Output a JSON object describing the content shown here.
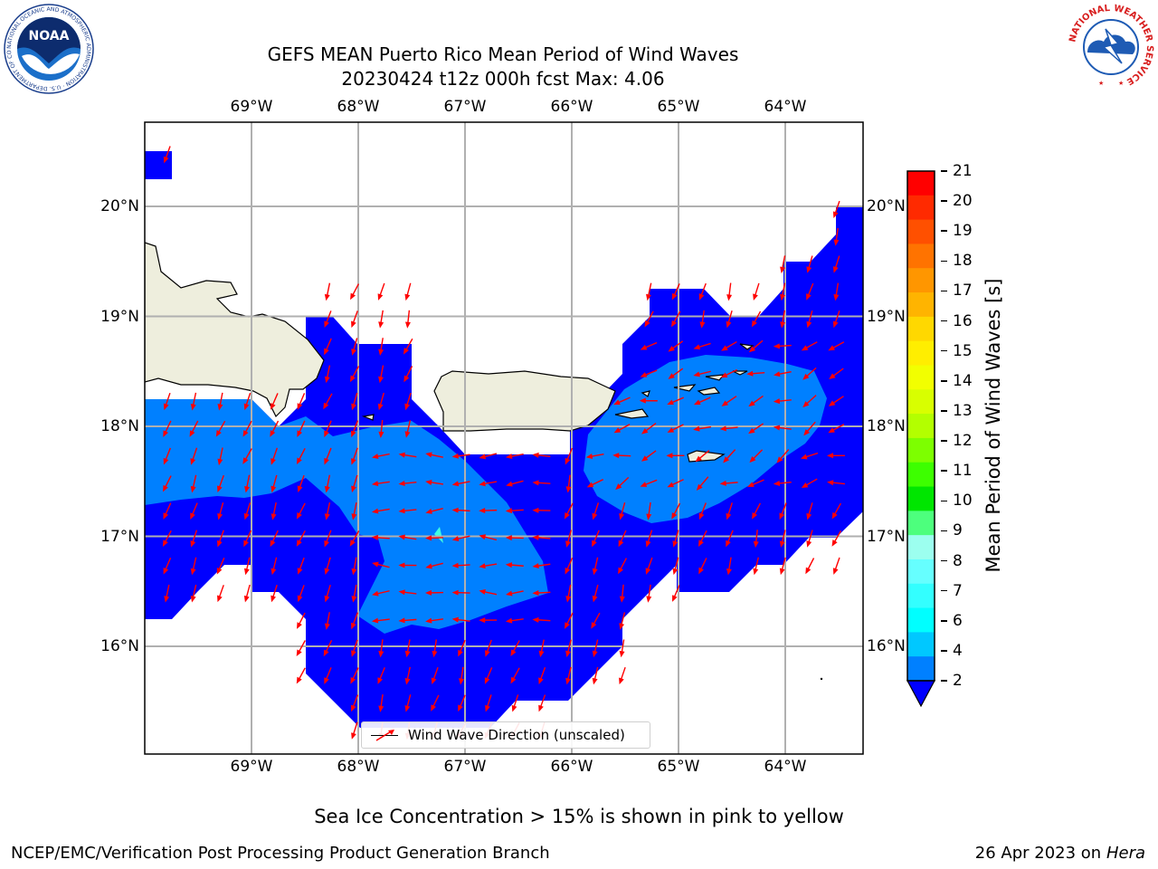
{
  "title_line1": "GEFS MEAN Puerto Rico Mean Period of Wind Waves",
  "title_line2": "20230424 t12z 000h fcst   Max: 4.06",
  "lon_ticks": [
    {
      "lon": -69,
      "label": "69°W"
    },
    {
      "lon": -68,
      "label": "68°W"
    },
    {
      "lon": -67,
      "label": "67°W"
    },
    {
      "lon": -66,
      "label": "66°W"
    },
    {
      "lon": -65,
      "label": "65°W"
    },
    {
      "lon": -64,
      "label": "64°W"
    }
  ],
  "lat_ticks": [
    {
      "lat": 20,
      "label": "20°N"
    },
    {
      "lat": 19,
      "label": "19°N"
    },
    {
      "lat": 18,
      "label": "18°N"
    },
    {
      "lat": 17,
      "label": "17°N"
    },
    {
      "lat": 16,
      "label": "16°N"
    }
  ],
  "colorbar": {
    "label": "Mean Period of Wind Waves [s]",
    "ticks": [
      "21",
      "20",
      "19",
      "18",
      "17",
      "16",
      "15",
      "14",
      "13",
      "12",
      "11",
      "10",
      "9",
      "8",
      "7",
      "6",
      "4",
      "2"
    ],
    "colors": [
      "#ff0000",
      "#ff2a00",
      "#ff5000",
      "#ff7300",
      "#ff9600",
      "#ffb400",
      "#ffd800",
      "#ffee00",
      "#f2ff00",
      "#d8ff00",
      "#b3ff00",
      "#7dff00",
      "#3dff00",
      "#00e600",
      "#4dff7d",
      "#9cffef",
      "#66ffff",
      "#33ffff",
      "#00ffff",
      "#00c8ff",
      "#0080ff"
    ]
  },
  "legend_label": "Wind Wave Direction (unscaled)",
  "footnote": "Sea Ice Concentration > 15% is shown in pink to yellow",
  "credit": "NCEP/EMC/Verification Post Processing Product Generation Branch",
  "date_prefix": "26 Apr 2023 on ",
  "date_machine": "Hera",
  "logo_left_text": "NOAA",
  "logo_left_ring": "NATIONAL OCEANIC AND ATMOSPHERIC ADMINISTRATION · U.S. DEPARTMENT OF COMMERCE",
  "logo_right_ring": "NATIONAL WEATHER SERVICE",
  "colors": {
    "deep_blue": "#0000ff",
    "mid_blue": "#0080ff",
    "cyan": "#40ffe0",
    "land": "#eeeedd",
    "arrow": "#ff0000",
    "grid": "#b0b0b0"
  }
}
